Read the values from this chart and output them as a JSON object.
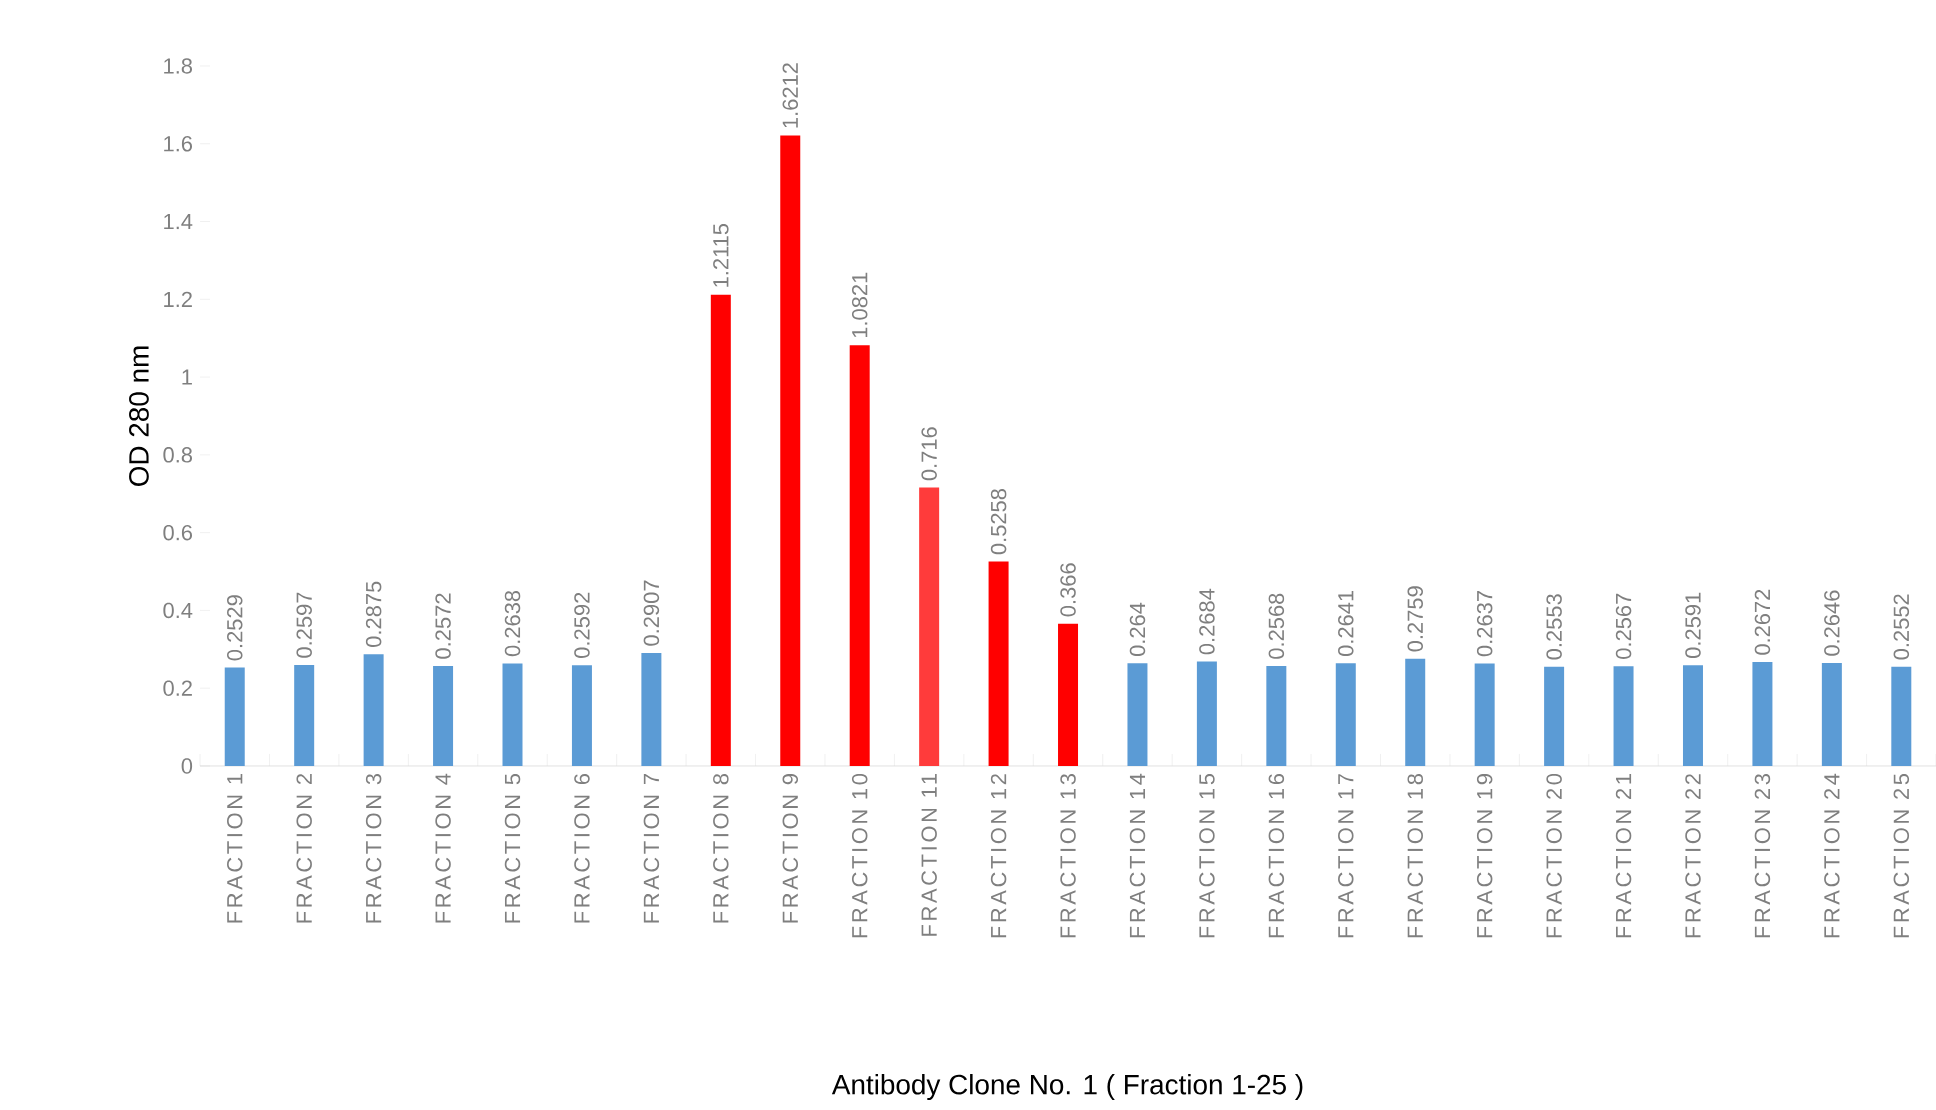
{
  "chart_data": {
    "type": "bar",
    "xlabel": "Antibody Clone No. 1 ( Fraction 1-25 )",
    "ylabel": "OD 280 nm",
    "categories": [
      "FRACTION 1",
      "FRACTION 2",
      "FRACTION 3",
      "FRACTION 4",
      "FRACTION 5",
      "FRACTION 6",
      "FRACTION 7",
      "FRACTION 8",
      "FRACTION 9",
      "FRACTION 10",
      "FRACTION 11",
      "FRACTION 12",
      "FRACTION 13",
      "FRACTION 14",
      "FRACTION 15",
      "FRACTION 16",
      "FRACTION 17",
      "FRACTION 18",
      "FRACTION 19",
      "FRACTION 20",
      "FRACTION 21",
      "FRACTION 22",
      "FRACTION 23",
      "FRACTION 24",
      "FRACTION 25"
    ],
    "values": [
      0.2529,
      0.2597,
      0.2875,
      0.2572,
      0.2638,
      0.2592,
      0.2907,
      1.2115,
      1.6212,
      1.0821,
      0.716,
      0.5258,
      0.366,
      0.264,
      0.2684,
      0.2568,
      0.2641,
      0.2759,
      0.2637,
      0.2553,
      0.2567,
      0.2591,
      0.2672,
      0.2646,
      0.2552
    ],
    "colors": [
      "#5b9bd5",
      "#5b9bd5",
      "#5b9bd5",
      "#5b9bd5",
      "#5b9bd5",
      "#5b9bd5",
      "#5b9bd5",
      "#ff0000",
      "#ff0000",
      "#ff0000",
      "#ff3b3b",
      "#ff0000",
      "#ff0000",
      "#5b9bd5",
      "#5b9bd5",
      "#5b9bd5",
      "#5b9bd5",
      "#5b9bd5",
      "#5b9bd5",
      "#5b9bd5",
      "#5b9bd5",
      "#5b9bd5",
      "#5b9bd5",
      "#5b9bd5",
      "#5b9bd5"
    ],
    "ylim": [
      0,
      1.8
    ],
    "yticks": [
      0,
      0.2,
      0.4,
      0.6,
      0.8,
      1,
      1.2,
      1.4,
      1.6,
      1.8
    ],
    "data_labels": true
  }
}
